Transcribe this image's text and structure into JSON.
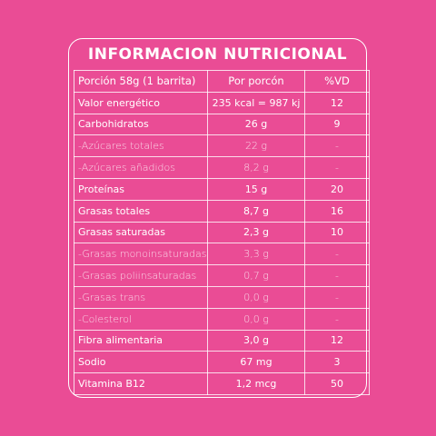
{
  "title": "INFORMACION NUTRICIONAL",
  "headers": [
    "Porción 58g (1 barrita)",
    "Por porcón",
    "%VD"
  ],
  "rows": [
    {
      "name": "Valor energético",
      "amount": "235 kcal = 987 kj",
      "vd": "12",
      "sub": false
    },
    {
      "name": "Carbohidratos",
      "amount": "26 g",
      "vd": "9",
      "sub": false
    },
    {
      "name": "-Azúcares totales",
      "amount": "22 g",
      "vd": "-",
      "sub": true
    },
    {
      "name": "-Azúcares añadidos",
      "amount": "8,2 g",
      "vd": "-",
      "sub": true
    },
    {
      "name": "Proteínas",
      "amount": "15 g",
      "vd": "20",
      "sub": false
    },
    {
      "name": "Grasas totales",
      "amount": "8,7 g",
      "vd": "16",
      "sub": false
    },
    {
      "name": "Grasas saturadas",
      "amount": "2,3 g",
      "vd": "10",
      "sub": false
    },
    {
      "name": "-Grasas monoinsaturadas",
      "amount": "3,3 g",
      "vd": "-",
      "sub": true
    },
    {
      "name": "-Grasas poliinsaturadas",
      "amount": "0,7 g",
      "vd": "-",
      "sub": true
    },
    {
      "name": "-Grasas trans",
      "amount": "0,0 g",
      "vd": "-",
      "sub": true
    },
    {
      "name": "-Colesterol",
      "amount": "0,0 g",
      "vd": "-",
      "sub": true
    },
    {
      "name": "Fibra alimentaria",
      "amount": "3,0 g",
      "vd": "12",
      "sub": false
    },
    {
      "name": "Sodio",
      "amount": "67 mg",
      "vd": "3",
      "sub": false
    },
    {
      "name": "Vitamina B12",
      "amount": "1,2 mcg",
      "vd": "50",
      "sub": false
    }
  ],
  "colors": {
    "background": "#ea4c95",
    "text": "#ffffff"
  }
}
